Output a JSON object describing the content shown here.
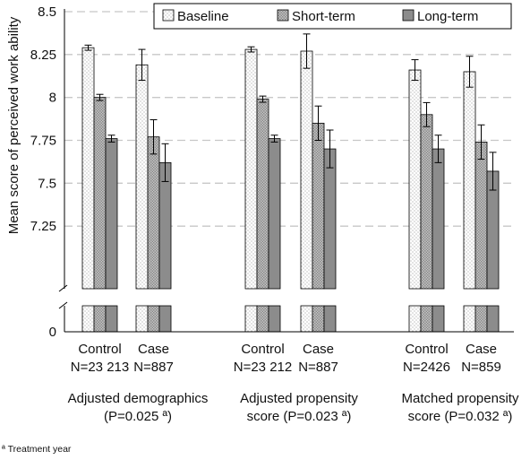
{
  "chart_data": {
    "type": "bar",
    "ylabel": "Mean score of perceived work ability",
    "y_axis_break": true,
    "ylim_upper": [
      7.0,
      8.5
    ],
    "y_ticks": [
      "8.5",
      "8.25",
      "8",
      "7.75",
      "7.5",
      "7.25",
      "0"
    ],
    "grid": "horizontal dashed",
    "legend_position": "top-right",
    "series": [
      {
        "name": "Baseline",
        "pattern": "dotted",
        "color": "#ffffff"
      },
      {
        "name": "Short-term",
        "pattern": "cross-hatched",
        "color": "#bdbdbd"
      },
      {
        "name": "Long-term",
        "pattern": "solid",
        "color": "#8c8c8c"
      }
    ],
    "categories": [
      {
        "label": "Control",
        "n_label": "N=23 213",
        "group": 0,
        "values": [
          8.29,
          8.0,
          7.76
        ],
        "errors": [
          0.015,
          0.018,
          0.02
        ]
      },
      {
        "label": "Case",
        "n_label": "N=887",
        "group": 0,
        "values": [
          8.19,
          7.77,
          7.62
        ],
        "errors": [
          0.09,
          0.1,
          0.11
        ]
      },
      {
        "label": "Control",
        "n_label": "N=23 212",
        "group": 1,
        "values": [
          8.28,
          7.99,
          7.76
        ],
        "errors": [
          0.015,
          0.018,
          0.02
        ]
      },
      {
        "label": "Case",
        "n_label": "N=887",
        "group": 1,
        "values": [
          8.27,
          7.85,
          7.7
        ],
        "errors": [
          0.1,
          0.1,
          0.11
        ]
      },
      {
        "label": "Control",
        "n_label": "N=2426",
        "group": 2,
        "values": [
          8.16,
          7.9,
          7.7
        ],
        "errors": [
          0.06,
          0.07,
          0.08
        ]
      },
      {
        "label": "Case",
        "n_label": "N=859",
        "group": 2,
        "values": [
          8.15,
          7.74,
          7.57
        ],
        "errors": [
          0.09,
          0.1,
          0.11
        ]
      }
    ],
    "groups": [
      {
        "line1": "Adjusted demographics",
        "line2": "(P=0.025 ª)"
      },
      {
        "line1": "Adjusted propensity",
        "line2": "score (P=0.023 ª)"
      },
      {
        "line1": "Matched propensity",
        "line2": "score (P=0.032 ª)"
      }
    ]
  },
  "footnote": "ª Treatment year"
}
